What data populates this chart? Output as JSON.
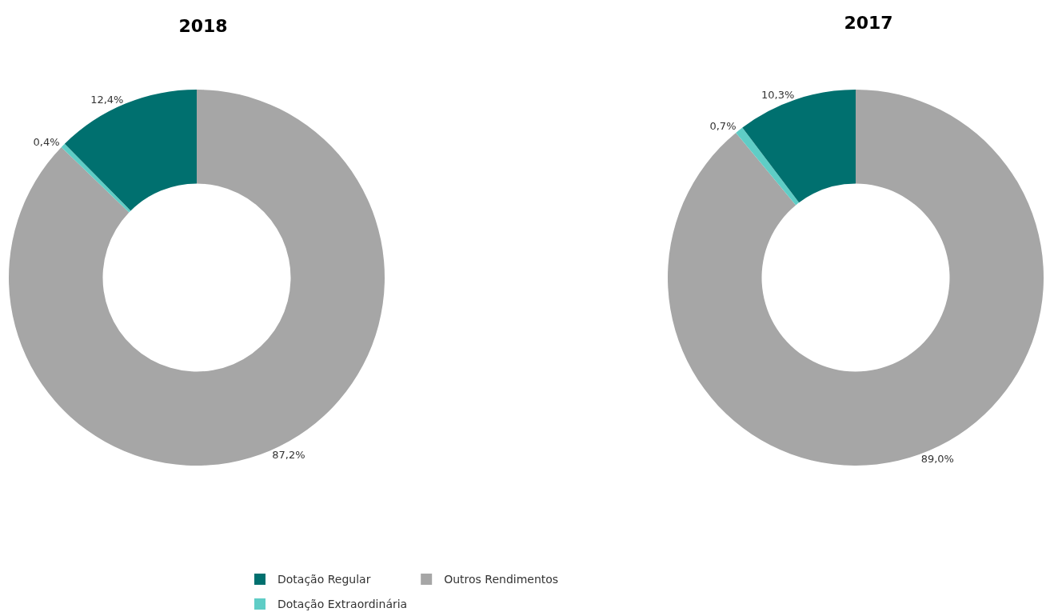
{
  "chart_data": [
    {
      "type": "donut",
      "title": "2018",
      "categories": [
        "Outros Rendimentos",
        "Dotação Extraordinária",
        "Dotação Regular"
      ],
      "values": [
        87.2,
        0.4,
        12.4
      ],
      "colors": [
        "#a6a6a6",
        "#5fcdc6",
        "#00706f"
      ],
      "value_labels": [
        "87,2%",
        "0,4%",
        "12,4%"
      ],
      "legend": "bottom"
    },
    {
      "type": "donut",
      "title": "2017",
      "categories": [
        null,
        null,
        null
      ],
      "values": [
        89.0,
        0.7,
        10.3
      ],
      "colors": [
        "#a6a6a6",
        "#5fcdc6",
        "#00706f"
      ],
      "value_labels": [
        "89,0%",
        "0,7%",
        "10,3%"
      ],
      "legend": false
    }
  ]
}
